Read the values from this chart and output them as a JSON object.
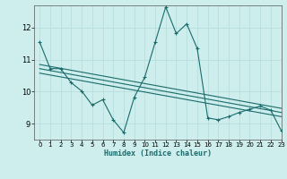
{
  "xlabel": "Humidex (Indice chaleur)",
  "xlim": [
    -0.5,
    23
  ],
  "ylim": [
    8.5,
    12.7
  ],
  "yticks": [
    9,
    10,
    11,
    12
  ],
  "xticks": [
    0,
    1,
    2,
    3,
    4,
    5,
    6,
    7,
    8,
    9,
    10,
    11,
    12,
    13,
    14,
    15,
    16,
    17,
    18,
    19,
    20,
    21,
    22,
    23
  ],
  "bg_color": "#cdeeed",
  "line_color": "#1a6b6b",
  "grid_color": "#b8dede",
  "series1_x": [
    0,
    1,
    2,
    3,
    4,
    5,
    6,
    7,
    8,
    9,
    10,
    11,
    12,
    13,
    14,
    15,
    16,
    17,
    18,
    19,
    20,
    21,
    22,
    23
  ],
  "series1_y": [
    11.55,
    10.72,
    10.72,
    10.28,
    10.02,
    9.58,
    9.75,
    9.12,
    8.72,
    9.82,
    10.45,
    11.55,
    12.65,
    11.82,
    12.12,
    11.35,
    9.18,
    9.12,
    9.22,
    9.35,
    9.45,
    9.55,
    9.42,
    8.78
  ],
  "series2_x": [
    0,
    23
  ],
  "series2_y": [
    10.85,
    9.48
  ],
  "series3_x": [
    0,
    23
  ],
  "series3_y": [
    10.72,
    9.35
  ],
  "series4_x": [
    0,
    23
  ],
  "series4_y": [
    10.58,
    9.22
  ]
}
